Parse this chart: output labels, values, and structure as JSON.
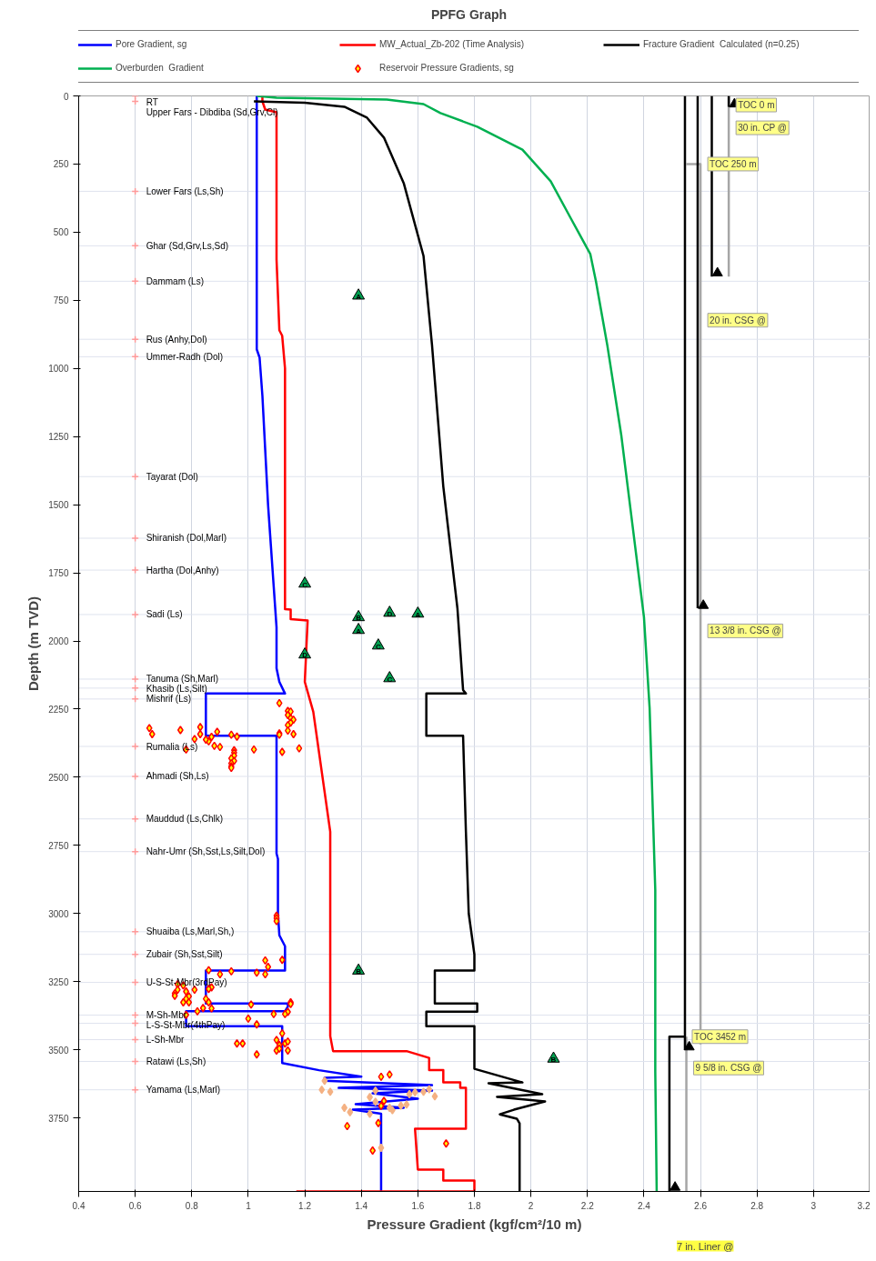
{
  "chart_data": {
    "type": "line",
    "title": "PPFG Graph",
    "xlabel": "Pressure Gradient (kgf/cm²/10 m)",
    "ylabel": "Depth (m TVD)",
    "xlim": [
      0.4,
      3.2
    ],
    "xticks": [
      0.4,
      0.6,
      0.8,
      1,
      1.2,
      1.4,
      1.6,
      1.8,
      2,
      2.2,
      2.4,
      2.6,
      2.8,
      3,
      3.2
    ],
    "ylim": [
      4020,
      0
    ],
    "yticks": [
      0,
      250,
      500,
      750,
      1000,
      1250,
      1500,
      1750,
      2000,
      2250,
      2500,
      2750,
      3000,
      3250,
      3500,
      3750
    ],
    "grid": "x",
    "legend": "top",
    "series": [
      {
        "name": "Pore Gradient, sg",
        "color": "#0000ff",
        "x": [
          1.03,
          1.03,
          1.04,
          1.05,
          1.06,
          1.07,
          1.08,
          1.09,
          1.1,
          1.1,
          1.11,
          1.13,
          0.85,
          0.85,
          1.1,
          1.1,
          1.105,
          1.105,
          1.11,
          1.13,
          1.13,
          0.85,
          0.85,
          1.14,
          1.14,
          1.13,
          0.78,
          0.78,
          1.12,
          1.12,
          1.25,
          1.4,
          1.27,
          1.27,
          1.65,
          1.32,
          1.65,
          1.44,
          1.6,
          1.38,
          1.55,
          1.37,
          1.47,
          1.47
        ],
        "values": [
          0,
          930,
          960,
          1100,
          1300,
          1500,
          1650,
          1800,
          1950,
          2100,
          2150,
          2193,
          2193,
          2348,
          2348,
          2780,
          2800,
          3000,
          3080,
          3120,
          3209,
          3209,
          3330,
          3330,
          3342,
          3359,
          3359,
          3414,
          3414,
          3549,
          3575,
          3599,
          3603,
          3614,
          3630,
          3640,
          3650,
          3660,
          3680,
          3700,
          3713,
          3720,
          3735,
          4020
        ]
      },
      {
        "name": "MW_Actual_Zb-202 (Time Analysis)",
        "color": "#ff0000",
        "x": [
          1.05,
          1.05,
          1.06,
          1.1,
          1.1,
          1.11,
          1.12,
          1.13,
          1.13,
          1.15,
          1.15,
          1.21,
          1.2,
          1.23,
          1.29,
          1.29,
          1.3,
          1.56,
          1.64,
          1.64,
          1.69,
          1.69,
          1.75,
          1.75,
          1.77,
          1.77,
          1.59,
          1.6,
          1.69,
          1.69,
          1.8,
          1.8,
          1.17
        ],
        "values": [
          0,
          20,
          50,
          60,
          600,
          860,
          880,
          1000,
          1883,
          1885,
          1920,
          1925,
          2150,
          2260,
          2700,
          3450,
          3505,
          3505,
          3530,
          3575,
          3575,
          3620,
          3620,
          3640,
          3640,
          3790,
          3790,
          3940,
          3940,
          3980,
          3980,
          4020,
          4020
        ]
      },
      {
        "name": "Fracture Gradient  Calculated (n=0.25)",
        "color": "#000000",
        "x": [
          1.02,
          1.2,
          1.34,
          1.42,
          1.48,
          1.55,
          1.62,
          1.65,
          1.69,
          1.74,
          1.76,
          1.77,
          1.63,
          1.63,
          1.76,
          1.77,
          1.78,
          1.8,
          1.8,
          1.66,
          1.66,
          1.81,
          1.81,
          1.63,
          1.63,
          1.8,
          1.8,
          1.97,
          1.85,
          2.04,
          1.88,
          2.05,
          1.94,
          1.89,
          1.95,
          1.96,
          1.96
        ],
        "values": [
          20,
          25,
          40,
          80,
          153,
          320,
          587,
          913,
          1433,
          1880,
          2180,
          2193,
          2193,
          2348,
          2348,
          2700,
          3000,
          3150,
          3209,
          3209,
          3330,
          3330,
          3360,
          3360,
          3414,
          3414,
          3570,
          3620,
          3623,
          3663,
          3673,
          3690,
          3720,
          3737,
          3753,
          3770,
          4020
        ]
      },
      {
        "name": "Overburden  Gradient",
        "color": "#00b050",
        "x": [
          1.03,
          1.1,
          1.49,
          1.62,
          1.68,
          1.81,
          1.97,
          2.07,
          2.14,
          2.21,
          2.23,
          2.27,
          2.32,
          2.36,
          2.4,
          2.42,
          2.44,
          2.44,
          2.445
        ],
        "values": [
          0,
          7,
          13,
          30,
          63,
          113,
          197,
          313,
          447,
          580,
          680,
          913,
          1247,
          1580,
          1913,
          2247,
          2913,
          3580,
          4020
        ]
      },
      {
        "name": "Reservoir Pressure Gradients, sg",
        "type": "scatter",
        "marker": "diamond",
        "color": "#ff0000",
        "x": [
          1.11,
          1.14,
          1.15,
          1.14,
          1.15,
          1.16,
          1.15,
          1.14,
          1.14,
          1.16,
          1.11,
          1.11,
          1.18,
          1.12,
          1.02,
          0.96,
          0.94,
          0.89,
          0.87,
          0.88,
          0.9,
          0.86,
          0.85,
          0.83,
          0.83,
          0.81,
          0.78,
          0.76,
          0.66,
          0.65,
          0.95,
          0.95,
          0.95,
          0.94,
          0.95,
          0.94,
          0.94,
          0.94,
          1.1,
          1.1,
          1.1,
          1.12,
          1.06,
          1.07,
          1.06,
          1.03,
          0.94,
          0.9,
          0.86,
          0.87,
          0.86,
          0.75,
          0.77,
          0.75,
          0.74,
          0.74,
          0.78,
          0.79,
          0.78,
          0.77,
          0.79,
          0.81,
          0.85,
          0.86,
          0.87,
          0.84,
          0.82,
          0.78,
          1.01,
          1.15,
          1.15,
          1.14,
          1.13,
          1.09,
          1.03,
          1.0,
          1.12,
          1.1,
          1.13,
          1.14,
          1.11,
          1.1,
          1.11,
          1.14,
          1.03,
          0.96,
          0.98,
          1.47,
          1.5,
          1.35,
          1.44,
          1.7,
          1.48,
          1.47,
          1.46
        ],
        "values": [
          2228,
          2257,
          2259,
          2272,
          2283,
          2289,
          2300,
          2309,
          2329,
          2342,
          2339,
          2344,
          2394,
          2407,
          2398,
          2351,
          2344,
          2333,
          2352,
          2385,
          2389,
          2368,
          2362,
          2316,
          2342,
          2360,
          2398,
          2327,
          2342,
          2320,
          2401,
          2410,
          2421,
          2431,
          2440,
          2449,
          2460,
          2466,
          3008,
          3017,
          3028,
          3170,
          3172,
          3196,
          3223,
          3217,
          3212,
          3223,
          3208,
          3271,
          3277,
          3260,
          3264,
          3280,
          3293,
          3302,
          3286,
          3304,
          3313,
          3326,
          3326,
          3280,
          3313,
          3326,
          3348,
          3347,
          3359,
          3372,
          3334,
          3326,
          3332,
          3361,
          3369,
          3369,
          3407,
          3386,
          3440,
          3464,
          3477,
          3470,
          3483,
          3503,
          3496,
          3503,
          3517,
          3477,
          3477,
          3599,
          3591,
          3780,
          3870,
          3844,
          3688,
          3706,
          3769
        ]
      },
      {
        "type": "scatter",
        "marker": "diamond",
        "color": "#f4b183",
        "x": [
          1.27,
          1.26,
          1.29,
          1.45,
          1.43,
          1.64,
          1.66,
          1.62,
          1.57,
          1.59,
          1.54,
          1.56,
          1.34,
          1.36,
          1.43,
          1.51,
          1.47,
          1.5,
          1.45
        ],
        "values": [
          3614,
          3647,
          3654,
          3650,
          3674,
          3645,
          3671,
          3654,
          3663,
          3656,
          3705,
          3701,
          3713,
          3729,
          3735,
          3722,
          3860,
          3713,
          3691
        ]
      },
      {
        "type": "scatter",
        "marker": "triangle",
        "color": "#00a050",
        "x": [
          1.39,
          1.2,
          1.39,
          1.5,
          1.6,
          1.39,
          1.46,
          1.2,
          1.5,
          1.39,
          2.08
        ],
        "values": [
          733,
          1790,
          1913,
          1897,
          1900,
          1960,
          2017,
          2050,
          2137,
          3210,
          3533
        ],
        "value_labels": [
          "A",
          "C",
          "B",
          "D",
          "A",
          "A",
          "C",
          "D",
          "C",
          "B",
          "B"
        ]
      },
      {
        "type": "scatter",
        "marker": "cross",
        "color": "#ff9999",
        "x": [
          0.6,
          0.6,
          0.6,
          0.6,
          0.6,
          0.6,
          0.6,
          0.6,
          0.6,
          0.6,
          0.6,
          0.6,
          0.6,
          0.6,
          0.6,
          0.6,
          0.6,
          0.6,
          0.6,
          0.6,
          0.6,
          0.6,
          0.6,
          0.6,
          0.6,
          0.6
        ],
        "values": [
          0,
          20,
          350,
          550,
          680,
          893,
          957,
          1397,
          1623,
          1740,
          1903,
          2140,
          2173,
          2213,
          2387,
          2497,
          2653,
          2773,
          3067,
          3150,
          3253,
          3373,
          3403,
          3463,
          3543,
          3647
        ],
        "value_labels": [
          "RT",
          "Upper Fars - Dibdiba (Sd,Grv,Cl)",
          "Lower Fars (Ls,Sh)",
          "Ghar (Sd,Grv,Ls,Sd)",
          "Dammam (Ls)",
          "Rus (Anhy,Dol)",
          "Ummer-Radh (Dol)",
          "Tayarat (Dol)",
          "Shiranish (Dol,Marl)",
          "Hartha (Dol,Anhy)",
          "Sadi (Ls)",
          "Tanuma (Sh,Marl)",
          "Khasib (Ls,Silt)",
          "Mishrif (Ls)",
          "Rumalia (Ls)",
          "Ahmadi (Sh,Ls)",
          "Mauddud (Ls,Chlk)",
          "Nahr-Umr (Sh,Sst,Ls,Silt,Dol)",
          "Shuaiba (Ls,Marl,Sh,)",
          "Zubair (Sh,Sst,Silt)",
          "U-S-St-Mbr(3rdPay)",
          "M-Sh-Mbr",
          "L-S-St-Mbr(4thPay)",
          "L-Sh-Mbr",
          "Ratawi (Ls,Sh)",
          "Yamama (Ls,Marl)"
        ]
      },
      {
        "color": "#a6a6a6",
        "x": [
          2.7,
          2.7
        ],
        "values": [
          0,
          663
        ]
      },
      {
        "color": "#a6a6a6",
        "x": [
          2.55,
          2.6,
          2.6
        ],
        "values": [
          250,
          250,
          3480
        ]
      },
      {
        "color": "#a6a6a6",
        "x": [
          2.55,
          2.55
        ],
        "values": [
          3452,
          4020
        ]
      },
      {
        "color": "#000000",
        "x": [
          2.7,
          2.7
        ],
        "values": [
          0,
          40
        ]
      },
      {
        "color": "#000000",
        "x": [
          2.64,
          2.64
        ],
        "values": [
          0,
          663
        ]
      },
      {
        "color": "#000000",
        "x": [
          2.59,
          2.59
        ],
        "values": [
          0,
          1880
        ]
      },
      {
        "color": "#000000",
        "x": [
          2.545,
          2.545
        ],
        "values": [
          0,
          3500
        ]
      },
      {
        "color": "#000000",
        "x": [
          2.545,
          2.49,
          2.49
        ],
        "values": [
          3452,
          3452,
          4020
        ]
      },
      {
        "type": "scatter",
        "marker": "triangle",
        "color": "#000000",
        "x": [
          2.72,
          2.66,
          2.61,
          2.56,
          2.51
        ],
        "values": [
          30,
          650,
          1870,
          3490,
          4005
        ]
      }
    ],
    "ref_lines": [
      {
        "axis": "y",
        "value": 350,
        "color": "#dfe3ee"
      },
      {
        "axis": "y",
        "value": 550,
        "color": "#dfe3ee"
      },
      {
        "axis": "y",
        "value": 680,
        "color": "#dfe3ee"
      },
      {
        "axis": "y",
        "value": 893,
        "color": "#dfe3ee"
      },
      {
        "axis": "y",
        "value": 957,
        "color": "#dfe3ee"
      },
      {
        "axis": "y",
        "value": 1397,
        "color": "#dfe3ee"
      },
      {
        "axis": "y",
        "value": 1623,
        "color": "#dfe3ee"
      },
      {
        "axis": "y",
        "value": 1740,
        "color": "#dfe3ee"
      },
      {
        "axis": "y",
        "value": 1903,
        "color": "#dfe3ee"
      },
      {
        "axis": "y",
        "value": 2140,
        "color": "#dfe3ee"
      },
      {
        "axis": "y",
        "value": 2173,
        "color": "#dfe3ee"
      },
      {
        "axis": "y",
        "value": 2213,
        "color": "#dfe3ee"
      },
      {
        "axis": "y",
        "value": 2387,
        "color": "#dfe3ee"
      },
      {
        "axis": "y",
        "value": 2497,
        "color": "#dfe3ee"
      },
      {
        "axis": "y",
        "value": 2653,
        "color": "#dfe3ee"
      },
      {
        "axis": "y",
        "value": 2773,
        "color": "#dfe3ee"
      },
      {
        "axis": "y",
        "value": 3067,
        "color": "#dfe3ee"
      },
      {
        "axis": "y",
        "value": 3150,
        "color": "#dfe3ee"
      },
      {
        "axis": "y",
        "value": 3253,
        "color": "#dfe3ee"
      },
      {
        "axis": "y",
        "value": 3373,
        "color": "#dfe3ee"
      },
      {
        "axis": "y",
        "value": 3403,
        "color": "#dfe3ee"
      },
      {
        "axis": "y",
        "value": 3463,
        "color": "#dfe3ee"
      },
      {
        "axis": "y",
        "value": 3543,
        "color": "#dfe3ee"
      },
      {
        "axis": "y",
        "value": 3647,
        "color": "#dfe3ee"
      }
    ],
    "annotations": [
      {
        "text": "TOC 0 m",
        "x": 2.7,
        "y": 0
      },
      {
        "text": "30 in. CP @",
        "x": 2.7,
        "y": 117
      },
      {
        "text": "TOC 250 m",
        "x": 2.6,
        "y": 250
      },
      {
        "text": "20 in. CSG @",
        "x": 2.6,
        "y": 823
      },
      {
        "text": "13 3/8 in. CSG @",
        "x": 2.6,
        "y": 1963
      },
      {
        "text": "TOC 3452 m",
        "x": 2.545,
        "y": 3452
      },
      {
        "text": "9 5/8 in. CSG @",
        "x": 2.55,
        "y": 3567
      },
      "7 in. Liner @"
    ]
  }
}
